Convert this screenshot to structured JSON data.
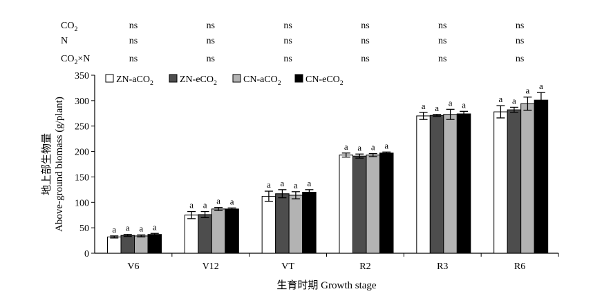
{
  "significance_table": {
    "rows": [
      {
        "label_main": "CO",
        "label_sub": "2",
        "label_tail": "",
        "values": [
          "ns",
          "ns",
          "ns",
          "ns",
          "ns",
          "ns"
        ]
      },
      {
        "label_main": "N",
        "label_sub": "",
        "label_tail": "",
        "values": [
          "ns",
          "ns",
          "ns",
          "ns",
          "ns",
          "ns"
        ]
      },
      {
        "label_main": "CO",
        "label_sub": "2",
        "label_tail": "×N",
        "values": [
          "ns",
          "ns",
          "ns",
          "ns",
          "ns",
          "ns"
        ]
      }
    ]
  },
  "chart_data": {
    "type": "bar",
    "xlabel": "生育时期 Growth stage",
    "ylabel_cn": "地上部生物量",
    "ylabel_en": "Above-ground biomass (g/plant)",
    "ylim": [
      0,
      350
    ],
    "yticks": [
      0,
      50,
      100,
      150,
      200,
      250,
      300,
      350
    ],
    "grid": false,
    "legend_position": "top-left",
    "categories": [
      "V6",
      "V12",
      "VT",
      "R2",
      "R3",
      "R6"
    ],
    "series": [
      {
        "name": "ZN-aCO2",
        "label_main": "ZN-aCO",
        "label_sub": "2",
        "color": "#ffffff",
        "values": [
          32,
          75,
          112,
          193,
          270,
          278
        ],
        "errors": [
          2,
          7,
          10,
          4,
          7,
          12
        ],
        "letters": [
          "a",
          "a",
          "a",
          "a",
          "a",
          "a"
        ]
      },
      {
        "name": "ZN-eCO2",
        "label_main": "ZN-eCO",
        "label_sub": "2",
        "color": "#4d4d4d",
        "values": [
          35,
          76,
          117,
          191,
          271,
          282
        ],
        "errors": [
          2,
          6,
          8,
          4,
          2,
          5
        ],
        "letters": [
          "a",
          "a",
          "a",
          "a",
          "a",
          "a"
        ]
      },
      {
        "name": "CN-aCO2",
        "label_main": "CN-aCO",
        "label_sub": "2",
        "color": "#b3b3b3",
        "values": [
          34,
          87,
          114,
          193,
          273,
          294
        ],
        "errors": [
          2,
          3,
          7,
          3,
          10,
          13
        ],
        "letters": [
          "a",
          "a",
          "a",
          "a",
          "a",
          "a"
        ]
      },
      {
        "name": "CN-eCO2",
        "label_main": "CN-eCO",
        "label_sub": "2",
        "color": "#000000",
        "values": [
          37,
          87,
          120,
          197,
          274,
          301
        ],
        "errors": [
          2,
          2,
          5,
          2,
          5,
          15
        ],
        "letters": [
          "a",
          "a",
          "a",
          "a",
          "a",
          "a"
        ]
      }
    ]
  }
}
